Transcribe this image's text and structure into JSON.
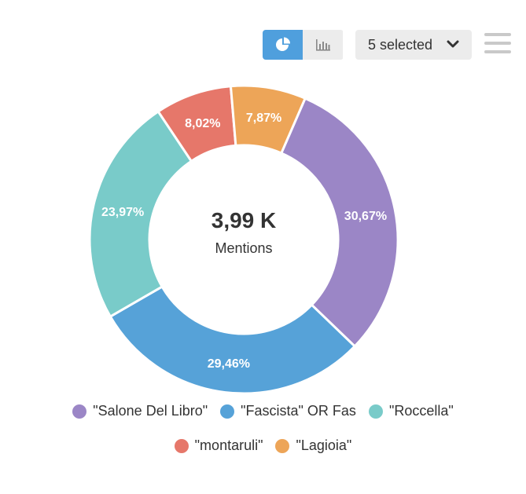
{
  "toolbar": {
    "pie_icon": "pie-chart-icon",
    "bar_icon": "bar-chart-icon",
    "selected_label": "5 selected",
    "dropdown_icon": "chevron-down-icon",
    "menu_icon": "hamburger-menu-icon"
  },
  "colors": {
    "accent": "#4f9fdd",
    "toggle_inactive": "#ececec"
  },
  "chart_data": {
    "type": "pie",
    "donut": true,
    "center_value": "3,99 K",
    "center_label": "Mentions",
    "legend_placement": "bottom",
    "series": [
      {
        "name": "\"Salone Del Libro\"",
        "value": 30.67,
        "label": "30,67%",
        "color": "#9b86c6"
      },
      {
        "name": "\"Fascista\" OR Fas",
        "value": 29.46,
        "label": "29,46%",
        "color": "#56a2d8"
      },
      {
        "name": "\"Roccella\"",
        "value": 23.97,
        "label": "23,97%",
        "color": "#79cbc9"
      },
      {
        "name": "\"montaruli\"",
        "value": 8.02,
        "label": "8,02%",
        "color": "#e6776a"
      },
      {
        "name": "\"Lagioia\"",
        "value": 7.87,
        "label": "7,87%",
        "color": "#eda558"
      }
    ]
  }
}
